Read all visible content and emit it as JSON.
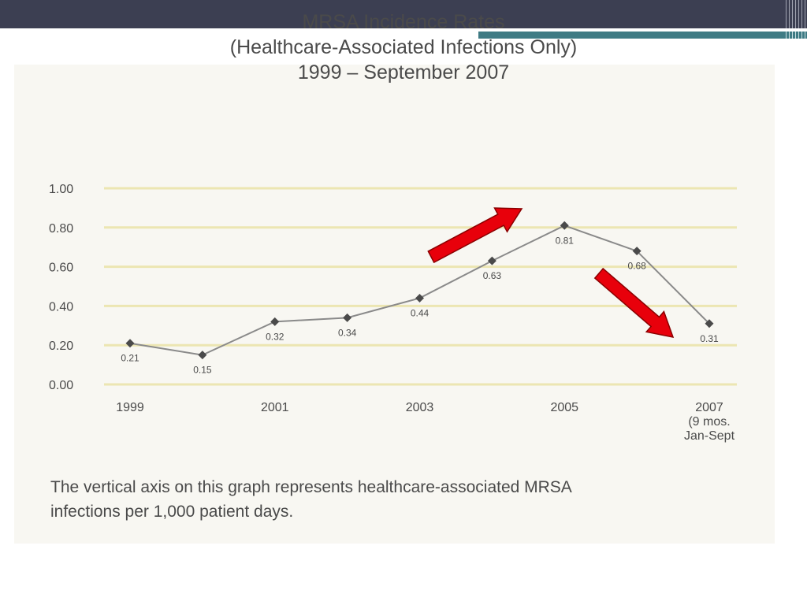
{
  "slide": {
    "header_color": "#3c3f52",
    "accent_color": "#3f7b84"
  },
  "chart_data": {
    "type": "line",
    "title": [
      "MRSA Incidence Rates",
      "(Healthcare-Associated Infections Only)",
      "1999 – September 2007"
    ],
    "x": [
      1999,
      2000,
      2001,
      2002,
      2003,
      2004,
      2005,
      2006,
      2007
    ],
    "values": [
      0.21,
      0.15,
      0.32,
      0.34,
      0.44,
      0.63,
      0.81,
      0.68,
      0.31
    ],
    "data_labels": [
      "0.21",
      "0.15",
      "0.32",
      "0.34",
      "0.44",
      "0.63",
      "0.81",
      "0.68",
      "0.31"
    ],
    "x_tick_labels": [
      {
        "x": 1999,
        "lines": [
          "1999"
        ]
      },
      {
        "x": 2001,
        "lines": [
          "2001"
        ]
      },
      {
        "x": 2003,
        "lines": [
          "2003"
        ]
      },
      {
        "x": 2005,
        "lines": [
          "2005"
        ]
      },
      {
        "x": 2007,
        "lines": [
          "2007",
          "(9 mos.",
          "Jan-Sept"
        ]
      }
    ],
    "y_ticks": [
      "1.00",
      "0.80",
      "0.60",
      "0.40",
      "0.20",
      "0.00"
    ],
    "ylim": [
      0,
      1
    ],
    "xlim": [
      1999,
      2007
    ],
    "grid": true,
    "colors": {
      "line": "#8a8a8a",
      "marker": "#4a4a4a",
      "grid": "#ece6b2",
      "arrow": "#e8000b",
      "text": "#4a4a4a"
    },
    "annotations": [
      {
        "type": "arrow",
        "direction": "up-right"
      },
      {
        "type": "arrow",
        "direction": "down-right"
      }
    ],
    "caption": [
      "The vertical axis on this graph represents healthcare-associated MRSA",
      "infections per 1,000 patient days."
    ]
  }
}
